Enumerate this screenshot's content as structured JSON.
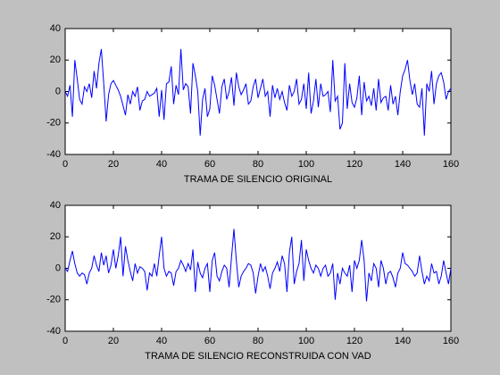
{
  "chart_data": [
    {
      "type": "line",
      "xlabel": "TRAMA DE SILENCIO ORIGINAL",
      "x": [
        0,
        1,
        2,
        3,
        4,
        5,
        6,
        7,
        8,
        9,
        10,
        11,
        12,
        13,
        14,
        15,
        16,
        17,
        18,
        19,
        20,
        21,
        22,
        23,
        24,
        25,
        26,
        27,
        28,
        29,
        30,
        31,
        32,
        33,
        34,
        35,
        36,
        37,
        38,
        39,
        40,
        41,
        42,
        43,
        44,
        45,
        46,
        47,
        48,
        49,
        50,
        51,
        52,
        53,
        54,
        55,
        56,
        57,
        58,
        59,
        60,
        61,
        62,
        63,
        64,
        65,
        66,
        67,
        68,
        69,
        70,
        71,
        72,
        73,
        74,
        75,
        76,
        77,
        78,
        79,
        80,
        81,
        82,
        83,
        84,
        85,
        86,
        87,
        88,
        89,
        90,
        91,
        92,
        93,
        94,
        95,
        96,
        97,
        98,
        99,
        100,
        101,
        102,
        103,
        104,
        105,
        106,
        107,
        108,
        109,
        110,
        111,
        112,
        113,
        114,
        115,
        116,
        117,
        118,
        119,
        120,
        121,
        122,
        123,
        124,
        125,
        126,
        127,
        128,
        129,
        130,
        131,
        132,
        133,
        134,
        135,
        136,
        137,
        138,
        139,
        140,
        141,
        142,
        143,
        144,
        145,
        146,
        147,
        148,
        149,
        150,
        151,
        152,
        153,
        154,
        155,
        156,
        157,
        158,
        159,
        160
      ],
      "series": [
        {
          "color": "#0000ff",
          "values": [
            0,
            -3,
            4,
            -16,
            20,
            8,
            -5,
            -8,
            3,
            0,
            5,
            -4,
            13,
            2,
            18,
            27,
            5,
            -19,
            -2,
            5,
            7,
            4,
            1,
            -3,
            -9,
            -15,
            -2,
            -8,
            0,
            -3,
            3,
            -12,
            -6,
            -5,
            0,
            -3,
            -2,
            -1,
            2,
            -16,
            1,
            -18,
            5,
            6,
            16,
            -8,
            4,
            -2,
            27,
            1,
            5,
            3,
            -14,
            18,
            10,
            0,
            -28,
            -5,
            2,
            -16,
            -11,
            10,
            4,
            -5,
            -14,
            3,
            8,
            -5,
            0,
            9,
            -9,
            12,
            3,
            -2,
            1,
            5,
            -8,
            -6,
            3,
            8,
            -4,
            2,
            8,
            -3,
            0,
            -16,
            4,
            -4,
            2,
            -5,
            0,
            -7,
            -12,
            4,
            -3,
            0,
            8,
            -8,
            -5,
            5,
            -11,
            12,
            -14,
            -6,
            8,
            -10,
            5,
            -3,
            -2,
            0,
            -13,
            20,
            -6,
            -3,
            -24,
            -20,
            18,
            -11,
            5,
            -7,
            -10,
            -4,
            10,
            -15,
            6,
            -6,
            -3,
            -9,
            2,
            -12,
            8,
            -7,
            -4,
            -3,
            -12,
            4,
            -8,
            -3,
            -15,
            0,
            10,
            14,
            20,
            7,
            -2,
            5,
            -8,
            -10,
            2,
            -28,
            5,
            0,
            13,
            -8,
            5,
            10,
            12,
            6,
            -5,
            0,
            2
          ]
        }
      ],
      "xlim": [
        0,
        160
      ],
      "xticks": [
        0,
        20,
        40,
        60,
        80,
        100,
        120,
        140,
        160
      ],
      "ylim": [
        -40,
        40
      ],
      "yticks": [
        -40,
        -20,
        0,
        20,
        40
      ]
    },
    {
      "type": "line",
      "xlabel": "TRAMA DE SILENCIO RECONSTRUIDA CON VAD",
      "x": [
        0,
        1,
        2,
        3,
        4,
        5,
        6,
        7,
        8,
        9,
        10,
        11,
        12,
        13,
        14,
        15,
        16,
        17,
        18,
        19,
        20,
        21,
        22,
        23,
        24,
        25,
        26,
        27,
        28,
        29,
        30,
        31,
        32,
        33,
        34,
        35,
        36,
        37,
        38,
        39,
        40,
        41,
        42,
        43,
        44,
        45,
        46,
        47,
        48,
        49,
        50,
        51,
        52,
        53,
        54,
        55,
        56,
        57,
        58,
        59,
        60,
        61,
        62,
        63,
        64,
        65,
        66,
        67,
        68,
        69,
        70,
        71,
        72,
        73,
        74,
        75,
        76,
        77,
        78,
        79,
        80,
        81,
        82,
        83,
        84,
        85,
        86,
        87,
        88,
        89,
        90,
        91,
        92,
        93,
        94,
        95,
        96,
        97,
        98,
        99,
        100,
        101,
        102,
        103,
        104,
        105,
        106,
        107,
        108,
        109,
        110,
        111,
        112,
        113,
        114,
        115,
        116,
        117,
        118,
        119,
        120,
        121,
        122,
        123,
        124,
        125,
        126,
        127,
        128,
        129,
        130,
        131,
        132,
        133,
        134,
        135,
        136,
        137,
        138,
        139,
        140,
        141,
        142,
        143,
        144,
        145,
        146,
        147,
        148,
        149,
        150,
        151,
        152,
        153,
        154,
        155,
        156,
        157,
        158,
        159,
        160
      ],
      "series": [
        {
          "color": "#0000ff",
          "values": [
            0,
            -2,
            5,
            11,
            3,
            -3,
            -5,
            -3,
            -4,
            -10,
            -3,
            0,
            8,
            2,
            -2,
            10,
            2,
            8,
            -3,
            2,
            12,
            0,
            8,
            20,
            -5,
            14,
            5,
            -2,
            -8,
            3,
            -3,
            1,
            0,
            -2,
            -14,
            -3,
            -5,
            3,
            -5,
            8,
            20,
            0,
            -5,
            -2,
            -3,
            -11,
            -2,
            0,
            5,
            2,
            -2,
            3,
            -1,
            12,
            -15,
            4,
            -3,
            -6,
            0,
            3,
            -15,
            5,
            10,
            -5,
            -8,
            -2,
            2,
            0,
            -12,
            7,
            25,
            5,
            -12,
            -5,
            -2,
            0,
            3,
            2,
            -3,
            -16,
            -5,
            3,
            -2,
            1,
            -5,
            -13,
            -3,
            0,
            4,
            -2,
            8,
            3,
            -15,
            10,
            20,
            -10,
            -2,
            3,
            18,
            -8,
            12,
            5,
            0,
            -3,
            2,
            0,
            -5,
            0,
            2,
            -5,
            -3,
            3,
            -20,
            -3,
            -10,
            0,
            -3,
            -5,
            2,
            -15,
            5,
            0,
            5,
            18,
            5,
            -21,
            -3,
            -8,
            3,
            0,
            -12,
            5,
            0,
            -10,
            -3,
            -2,
            -6,
            -12,
            -3,
            0,
            10,
            3,
            2,
            0,
            -2,
            -5,
            -3,
            8,
            -2,
            -10,
            -5,
            -8,
            3,
            -3,
            -2,
            -10,
            -5,
            5,
            -3,
            -10,
            0
          ]
        }
      ],
      "xlim": [
        0,
        160
      ],
      "xticks": [
        0,
        20,
        40,
        60,
        80,
        100,
        120,
        140,
        160
      ],
      "ylim": [
        -40,
        40
      ],
      "yticks": [
        -40,
        -20,
        0,
        20,
        40
      ]
    }
  ]
}
